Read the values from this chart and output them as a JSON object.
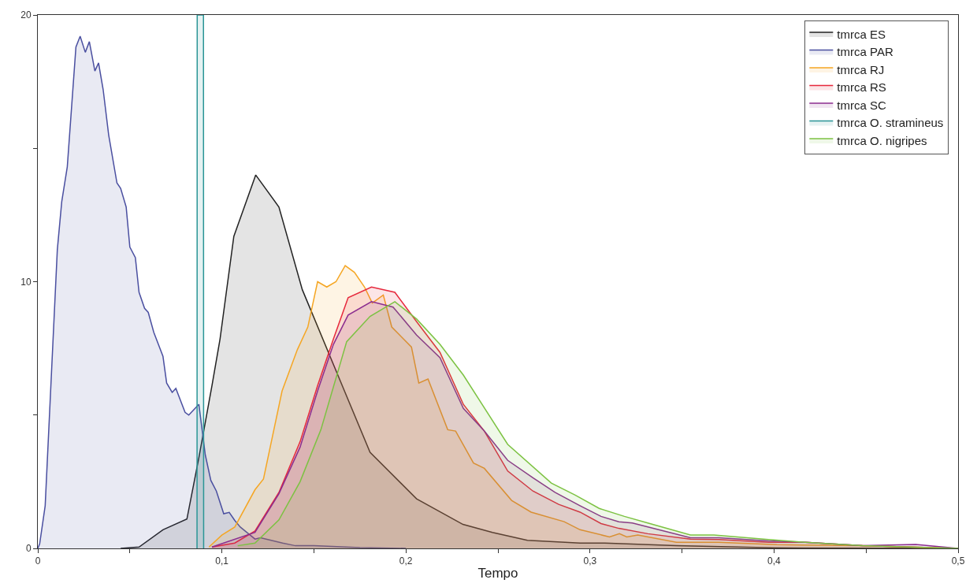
{
  "chart_data": {
    "type": "area",
    "xlabel": "Tempo",
    "xlim": [
      0,
      0.5
    ],
    "ylim": [
      0,
      20
    ],
    "xticks": [
      0,
      {
        "value": 0.05,
        "label": null
      },
      {
        "value": 0.1,
        "label": "0,1"
      },
      {
        "value": 0.15,
        "label": null
      },
      {
        "value": 0.2,
        "label": "0,2"
      },
      {
        "value": 0.25,
        "label": null
      },
      {
        "value": 0.3,
        "label": "0,3"
      },
      {
        "value": 0.35,
        "label": null
      },
      {
        "value": 0.4,
        "label": "0,4"
      },
      {
        "value": 0.45,
        "label": null
      },
      {
        "value": 0.5,
        "label": "0,5"
      }
    ],
    "yticks": [
      0,
      {
        "value": 5,
        "label": null
      },
      10,
      {
        "value": 15,
        "label": null
      },
      20
    ],
    "grid": false,
    "legend": "top right",
    "marker": "none",
    "line_style": "solid",
    "series": [
      {
        "name": "tmrca ES",
        "color": "#222222",
        "x": [
          0.045,
          0.055,
          0.068,
          0.081,
          0.0875,
          0.0946,
          0.099,
          0.1065,
          0.1184,
          0.131,
          0.1437,
          0.1606,
          0.1805,
          0.2058,
          0.231,
          0.247,
          0.266,
          0.2946,
          0.308,
          0.347,
          0.4,
          0.5
        ],
        "values": [
          0,
          0.05,
          0.7,
          1.1,
          3.4,
          6.1,
          7.85,
          11.7,
          14.0,
          12.8,
          9.7,
          6.9,
          3.6,
          1.86,
          0.9,
          0.6,
          0.3,
          0.2,
          0.2,
          0.1,
          0.02,
          0
        ]
      },
      {
        "name": "tmrca PAR",
        "color": "#4a4fa0",
        "x": [
          0,
          0.001,
          0.004,
          0.0106,
          0.013,
          0.016,
          0.0207,
          0.023,
          0.0258,
          0.028,
          0.031,
          0.033,
          0.0355,
          0.0385,
          0.043,
          0.045,
          0.048,
          0.05,
          0.053,
          0.055,
          0.058,
          0.06,
          0.063,
          0.068,
          0.07,
          0.073,
          0.075,
          0.08,
          0.082,
          0.0875,
          0.091,
          0.094,
          0.097,
          0.101,
          0.104,
          0.107,
          0.11,
          0.118,
          0.121,
          0.133,
          0.14,
          0.15,
          0.175,
          0.2
        ],
        "values": [
          0,
          0.17,
          1.6,
          11.2,
          13.0,
          14.3,
          18.8,
          19.2,
          18.6,
          19.0,
          17.9,
          18.2,
          17.2,
          15.5,
          13.7,
          13.5,
          12.8,
          11.3,
          10.9,
          9.6,
          9.0,
          8.85,
          8.1,
          7.2,
          6.2,
          5.85,
          6.0,
          5.1,
          5.0,
          5.4,
          3.5,
          2.55,
          2.15,
          1.3,
          1.35,
          1.05,
          0.8,
          0.35,
          0.4,
          0.2,
          0.1,
          0.1,
          0.03,
          0
        ]
      },
      {
        "name": "tmrca RJ",
        "color": "#f5a623",
        "x": [
          0.093,
          0.1,
          0.107,
          0.118,
          0.1226,
          0.1327,
          0.141,
          0.1467,
          0.152,
          0.157,
          0.162,
          0.167,
          0.172,
          0.1775,
          0.1817,
          0.1877,
          0.1923,
          0.203,
          0.207,
          0.212,
          0.2227,
          0.227,
          0.2367,
          0.2426,
          0.2574,
          0.268,
          0.286,
          0.2946,
          0.3106,
          0.316,
          0.32,
          0.326,
          0.347,
          0.37,
          0.4015,
          0.448,
          0.5
        ],
        "values": [
          0.05,
          0.5,
          0.8,
          2.2,
          2.6,
          5.9,
          7.45,
          8.3,
          10.0,
          9.8,
          10.0,
          10.6,
          10.35,
          9.8,
          9.2,
          9.5,
          8.3,
          7.55,
          6.2,
          6.35,
          4.45,
          4.4,
          3.2,
          3.0,
          1.8,
          1.36,
          1.0,
          0.7,
          0.43,
          0.55,
          0.43,
          0.5,
          0.23,
          0.23,
          0.14,
          0.1,
          0
        ]
      },
      {
        "name": "tmrca RS",
        "color": "#e6283c",
        "x": [
          0.0946,
          0.107,
          0.118,
          0.131,
          0.1425,
          0.152,
          0.1606,
          0.1686,
          0.1813,
          0.194,
          0.2058,
          0.2185,
          0.2312,
          0.2426,
          0.2553,
          0.269,
          0.283,
          0.2946,
          0.306,
          0.3157,
          0.3314,
          0.3546,
          0.37,
          0.397,
          0.417,
          0.448,
          0.5
        ],
        "values": [
          0.05,
          0.2,
          0.65,
          2.1,
          4.0,
          6.1,
          7.85,
          9.4,
          9.8,
          9.6,
          8.5,
          7.35,
          5.4,
          4.4,
          2.9,
          2.15,
          1.65,
          1.36,
          0.93,
          0.75,
          0.55,
          0.35,
          0.33,
          0.23,
          0.23,
          0.1,
          0
        ]
      },
      {
        "name": "tmrca SC",
        "color": "#8b2c8f",
        "x": [
          0.0946,
          0.118,
          0.131,
          0.1425,
          0.152,
          0.1606,
          0.1686,
          0.1813,
          0.193,
          0.2058,
          0.2185,
          0.2312,
          0.2426,
          0.2553,
          0.269,
          0.281,
          0.2946,
          0.306,
          0.3157,
          0.323,
          0.3546,
          0.37,
          0.397,
          0.417,
          0.448,
          0.477,
          0.5
        ],
        "values": [
          0.05,
          0.6,
          2.05,
          3.8,
          5.9,
          7.65,
          8.75,
          9.25,
          9.05,
          8.0,
          7.15,
          5.25,
          4.4,
          3.3,
          2.65,
          2.1,
          1.6,
          1.2,
          1.0,
          0.95,
          0.4,
          0.4,
          0.28,
          0.23,
          0.1,
          0.15,
          0
        ]
      },
      {
        "name": "tmrca O. stramineus",
        "color": "#2a9596",
        "x": [
          0.0865,
          0.0866,
          0.09,
          0.0901
        ],
        "values": [
          0,
          20,
          20,
          0
        ]
      },
      {
        "name": "tmrca O. nigripes",
        "color": "#7cc242",
        "x": [
          0.1086,
          0.118,
          0.131,
          0.1425,
          0.1538,
          0.1678,
          0.1805,
          0.194,
          0.2058,
          0.2185,
          0.2312,
          0.2553,
          0.279,
          0.292,
          0.305,
          0.3187,
          0.3314,
          0.3546,
          0.3673,
          0.397,
          0.417,
          0.448,
          0.5
        ],
        "values": [
          0.1,
          0.2,
          1.07,
          2.5,
          4.45,
          7.75,
          8.7,
          9.25,
          8.6,
          7.65,
          6.5,
          3.9,
          2.45,
          2.0,
          1.5,
          1.2,
          0.95,
          0.5,
          0.5,
          0.33,
          0.23,
          0.1,
          0
        ]
      }
    ]
  }
}
